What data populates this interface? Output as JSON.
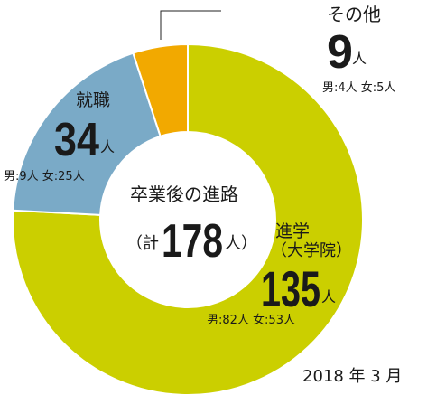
{
  "chart_data": {
    "type": "pie",
    "style": "donut",
    "title": "卒業後の進路",
    "total": {
      "prefix": "（計",
      "value": "178",
      "suffix": "人）"
    },
    "series": [
      {
        "name": "進学",
        "sub": "（大学院）",
        "value": 135,
        "display": "135",
        "unit": "人",
        "breakdown": "男:82人 女:53人",
        "color": "#cbcf00"
      },
      {
        "name": "就職",
        "sub": "",
        "value": 34,
        "display": "34",
        "unit": "人",
        "breakdown": "男:9人 女:25人",
        "color": "#7aaac7"
      },
      {
        "name": "その他",
        "sub": "",
        "value": 9,
        "display": "9",
        "unit": "人",
        "breakdown": "男:4人 女:5人",
        "color": "#f2a900"
      }
    ],
    "date_note": "2018 年 3 月"
  }
}
